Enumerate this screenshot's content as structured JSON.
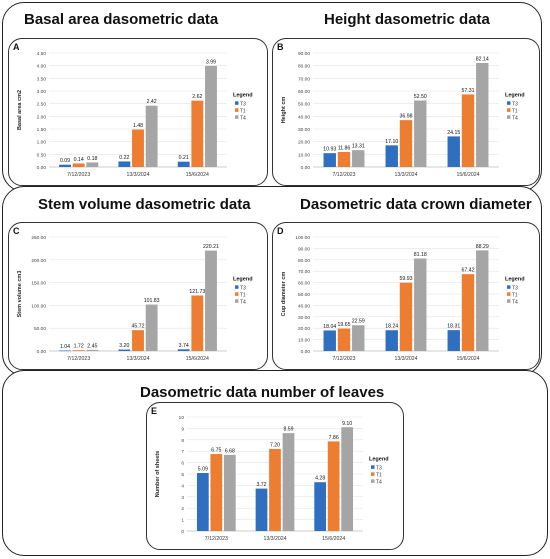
{
  "chart_data": [
    {
      "type": "bar",
      "panel": "A",
      "title": "Basal area dasometric data",
      "ylabel": "Basal area cm2",
      "ylim": [
        0,
        4.5
      ],
      "yticks": [
        "0.00",
        "0.50",
        "1.00",
        "1.50",
        "2.00",
        "2.50",
        "3.00",
        "3.50",
        "4.00",
        "4.50"
      ],
      "categories": [
        "7/12/2023",
        "13/3/2024",
        "15/6/2024"
      ],
      "legend_title": "Legend",
      "legend_position": "right",
      "series": [
        {
          "name": "T3",
          "color": "#2f6fc0",
          "values": [
            0.09,
            0.22,
            0.21
          ],
          "labels": [
            "0.09",
            "0.22",
            "0.21"
          ]
        },
        {
          "name": "T1",
          "color": "#ed7d31",
          "values": [
            0.14,
            1.48,
            2.62
          ],
          "labels": [
            "0.14",
            "1.48",
            "2.62"
          ]
        },
        {
          "name": "T4",
          "color": "#a5a5a5",
          "values": [
            0.18,
            2.42,
            3.99
          ],
          "labels": [
            "0.18",
            "2.42",
            "3.99"
          ]
        }
      ]
    },
    {
      "type": "bar",
      "panel": "B",
      "title": "Height dasometric data",
      "ylabel": "Height cm",
      "ylim": [
        0,
        90
      ],
      "yticks": [
        "0.00",
        "10.00",
        "20.00",
        "30.00",
        "40.00",
        "50.00",
        "60.00",
        "70.00",
        "80.00",
        "90.00"
      ],
      "categories": [
        "7/12/2023",
        "13/3/2024",
        "15/6/2024"
      ],
      "legend_title": "Legend",
      "legend_position": "right",
      "series": [
        {
          "name": "T3",
          "color": "#2f6fc0",
          "values": [
            10.93,
            17.1,
            24.15
          ],
          "labels": [
            "10.93",
            "17.10",
            "24.15"
          ]
        },
        {
          "name": "T1",
          "color": "#ed7d31",
          "values": [
            11.86,
            36.98,
            57.31
          ],
          "labels": [
            "11.86",
            "36.98",
            "57.31"
          ]
        },
        {
          "name": "T4",
          "color": "#a5a5a5",
          "values": [
            13.31,
            52.5,
            82.14
          ],
          "labels": [
            "13.31",
            "52.50",
            "82.14"
          ]
        }
      ]
    },
    {
      "type": "bar",
      "panel": "C",
      "title": "Stem volume dasometric data",
      "ylabel": "Stem volume cm3",
      "ylim": [
        0,
        250
      ],
      "yticks": [
        "0.00",
        "50.00",
        "100.00",
        "150.00",
        "200.00",
        "250.00"
      ],
      "categories": [
        "7/12/2023",
        "13/3/2024",
        "15/6/2024"
      ],
      "legend_title": "Legend",
      "legend_position": "right",
      "series": [
        {
          "name": "T3",
          "color": "#2f6fc0",
          "values": [
            1.04,
            3.2,
            3.74
          ],
          "labels": [
            "1.04",
            "3.20",
            "3.74"
          ]
        },
        {
          "name": "T1",
          "color": "#ed7d31",
          "values": [
            1.72,
            45.72,
            121.73
          ],
          "labels": [
            "1.72",
            "45.72",
            "121.73"
          ]
        },
        {
          "name": "T4",
          "color": "#a5a5a5",
          "values": [
            2.45,
            101.83,
            220.21
          ],
          "labels": [
            "2.45",
            "101.83",
            "220.21"
          ]
        }
      ]
    },
    {
      "type": "bar",
      "panel": "D",
      "title": "Dasometric data crown diameter",
      "ylabel": "Cup diameter cm",
      "ylim": [
        0,
        100
      ],
      "yticks": [
        "0.00",
        "10.00",
        "20.00",
        "30.00",
        "40.00",
        "50.00",
        "60.00",
        "70.00",
        "80.00",
        "90.00",
        "100.00"
      ],
      "categories": [
        "7/12/2023",
        "13/3/2024",
        "15/6/2024"
      ],
      "legend_title": "Legend",
      "legend_position": "right",
      "series": [
        {
          "name": "T3",
          "color": "#2f6fc0",
          "values": [
            18.04,
            18.24,
            18.31
          ],
          "labels": [
            "18.04",
            "18.24",
            "18.31"
          ]
        },
        {
          "name": "T1",
          "color": "#ed7d31",
          "values": [
            19.65,
            59.93,
            67.42
          ],
          "labels": [
            "19.65",
            "59.93",
            "67.42"
          ]
        },
        {
          "name": "T4",
          "color": "#a5a5a5",
          "values": [
            22.59,
            81.18,
            88.29
          ],
          "labels": [
            "22.59",
            "81.18",
            "88.29"
          ]
        }
      ]
    },
    {
      "type": "bar",
      "panel": "E",
      "title": "Dasometric data number of leaves",
      "ylabel": "Number of sheets",
      "ylim": [
        0,
        10
      ],
      "yticks": [
        "0",
        "1",
        "2",
        "3",
        "4",
        "5",
        "6",
        "7",
        "8",
        "9",
        "10"
      ],
      "categories": [
        "7/12/2023",
        "13/3/2024",
        "15/6/2024"
      ],
      "legend_title": "Legend",
      "legend_position": "right",
      "series": [
        {
          "name": "T3",
          "color": "#2f6fc0",
          "values": [
            5.09,
            3.72,
            4.28
          ],
          "labels": [
            "5.09",
            "3.72",
            "4.28"
          ]
        },
        {
          "name": "T1",
          "color": "#ed7d31",
          "values": [
            6.75,
            7.2,
            7.86
          ],
          "labels": [
            "6.75",
            "7.20",
            "7.86"
          ]
        },
        {
          "name": "T4",
          "color": "#a5a5a5",
          "values": [
            6.68,
            8.59,
            9.1
          ],
          "labels": [
            "6.68",
            "8.59",
            "9.10"
          ]
        }
      ]
    }
  ]
}
